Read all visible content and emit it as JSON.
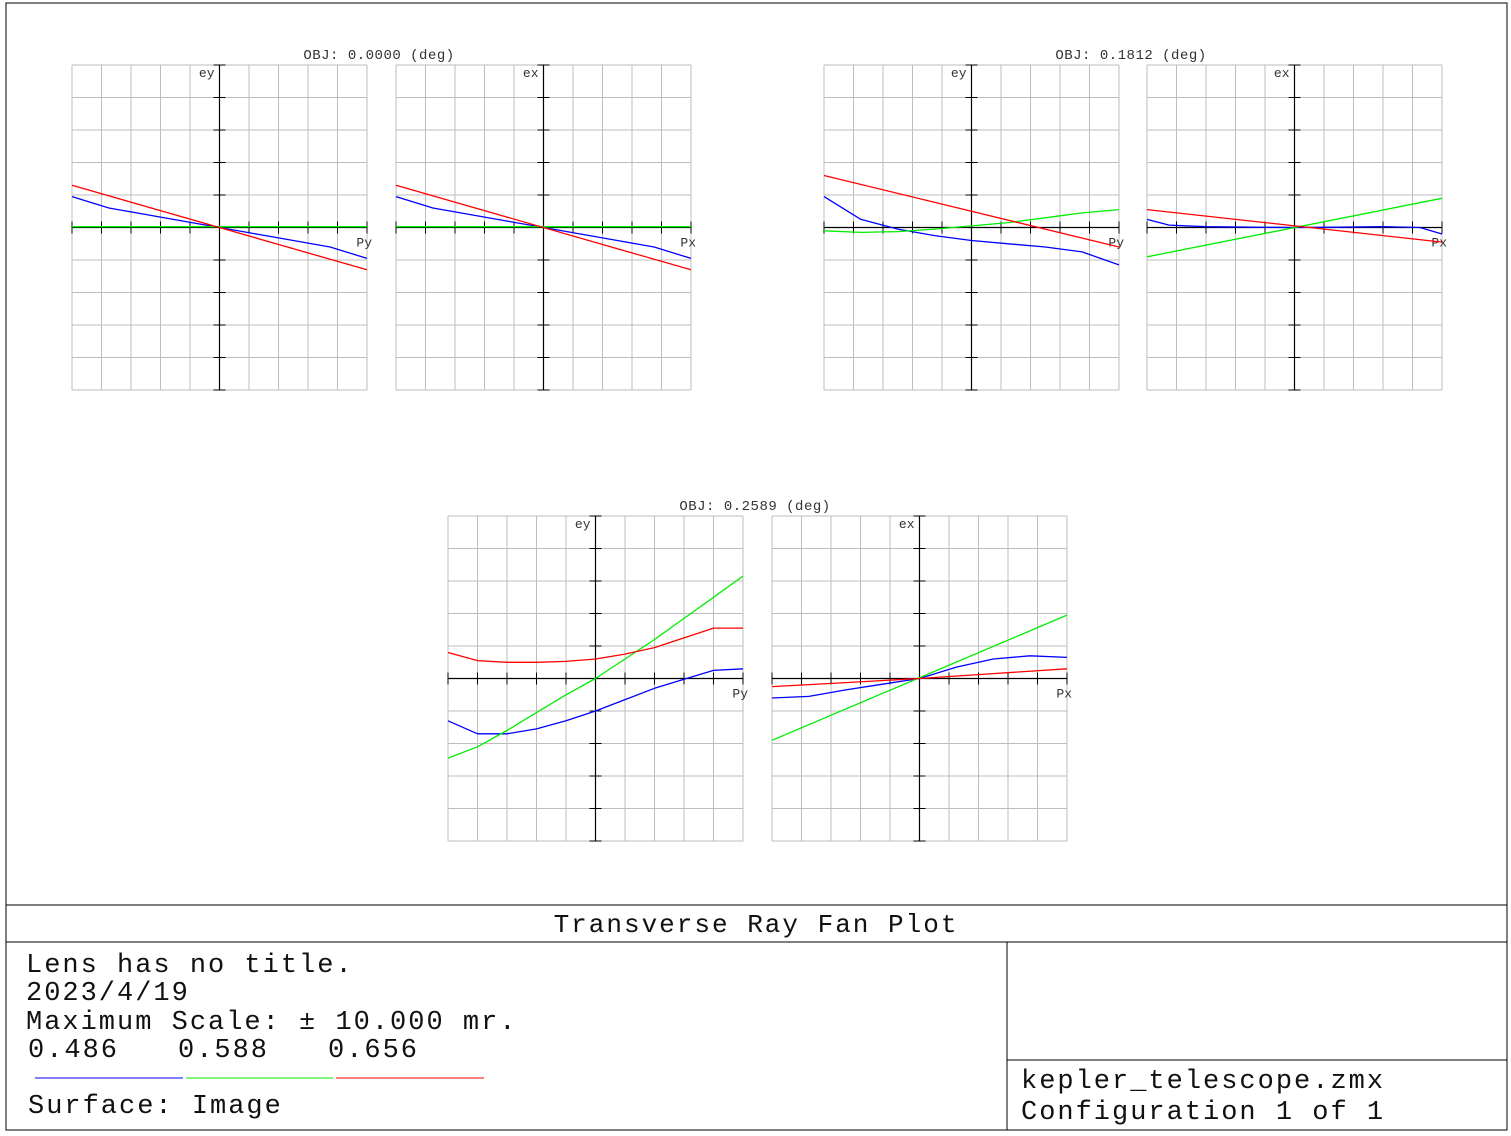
{
  "footer": {
    "plot_title": "Transverse Ray Fan Plot",
    "lens_title": "Lens has no title.",
    "date": "2023/4/19",
    "max_scale": "Maximum Scale: ± 10.000 mr.",
    "surface": "Surface: Image",
    "file_name": "kepler_telescope.zmx",
    "configuration": "Configuration 1 of 1"
  },
  "colors": {
    "wavelength_486": "#0000ff",
    "wavelength_588": "#00ee00",
    "wavelength_656": "#ff0000",
    "grid": "#bdbdbd",
    "axis": "#000000"
  },
  "chart_data": [
    {
      "type": "line",
      "title": "OBJ: 0.0000 (deg)",
      "panels": [
        {
          "ylabel": "ey",
          "xlabel": "Py",
          "xlim": [
            -1,
            1
          ],
          "ylim": [
            -10,
            10
          ],
          "series": [
            {
              "name": "0.486",
              "color": "#0000ff",
              "x": [
                -1,
                -0.75,
                -0.5,
                -0.25,
                0,
                0.25,
                0.5,
                0.75,
                1
              ],
              "y": [
                1.9,
                1.2,
                0.8,
                0.4,
                0,
                -0.4,
                -0.8,
                -1.2,
                -1.9
              ]
            },
            {
              "name": "0.588",
              "color": "#00ee00",
              "x": [
                -1,
                1
              ],
              "y": [
                0.05,
                0.05
              ]
            },
            {
              "name": "0.656",
              "color": "#ff0000",
              "x": [
                -1,
                1
              ],
              "y": [
                2.6,
                -2.6
              ]
            }
          ]
        },
        {
          "ylabel": "ex",
          "xlabel": "Px",
          "xlim": [
            -1,
            1
          ],
          "ylim": [
            -10,
            10
          ],
          "series": [
            {
              "name": "0.486",
              "color": "#0000ff",
              "x": [
                -1,
                -0.75,
                -0.5,
                -0.25,
                0,
                0.25,
                0.5,
                0.75,
                1
              ],
              "y": [
                1.9,
                1.2,
                0.8,
                0.4,
                0,
                -0.4,
                -0.8,
                -1.2,
                -1.9
              ]
            },
            {
              "name": "0.588",
              "color": "#00ee00",
              "x": [
                -1,
                1
              ],
              "y": [
                0.05,
                0.05
              ]
            },
            {
              "name": "0.656",
              "color": "#ff0000",
              "x": [
                -1,
                1
              ],
              "y": [
                2.6,
                -2.6
              ]
            }
          ]
        }
      ]
    },
    {
      "type": "line",
      "title": "OBJ: 0.1812 (deg)",
      "panels": [
        {
          "ylabel": "ey",
          "xlabel": "Py",
          "xlim": [
            -1,
            1
          ],
          "ylim": [
            -10,
            10
          ],
          "series": [
            {
              "name": "0.486",
              "color": "#0000ff",
              "x": [
                -1,
                -0.75,
                -0.5,
                -0.25,
                0,
                0.25,
                0.5,
                0.75,
                1
              ],
              "y": [
                1.9,
                0.5,
                -0.1,
                -0.5,
                -0.8,
                -1.0,
                -1.2,
                -1.5,
                -2.3
              ]
            },
            {
              "name": "0.588",
              "color": "#00ee00",
              "x": [
                -1,
                -0.75,
                -0.5,
                -0.25,
                0,
                0.25,
                0.5,
                0.75,
                1
              ],
              "y": [
                -0.2,
                -0.3,
                -0.25,
                -0.1,
                0.1,
                0.3,
                0.6,
                0.9,
                1.1
              ]
            },
            {
              "name": "0.656",
              "color": "#ff0000",
              "x": [
                -1,
                1
              ],
              "y": [
                3.2,
                -1.2
              ]
            }
          ]
        },
        {
          "ylabel": "ex",
          "xlabel": "Px",
          "xlim": [
            -1,
            1
          ],
          "ylim": [
            -10,
            10
          ],
          "series": [
            {
              "name": "0.486",
              "color": "#0000ff",
              "x": [
                -1,
                -0.85,
                -0.6,
                -0.3,
                0,
                0.3,
                0.6,
                0.85,
                1
              ],
              "y": [
                0.5,
                0.15,
                0.05,
                0.02,
                0,
                0.02,
                0.05,
                0.0,
                -0.4
              ]
            },
            {
              "name": "0.588",
              "color": "#00ee00",
              "x": [
                -1,
                1
              ],
              "y": [
                -1.8,
                1.8
              ]
            },
            {
              "name": "0.656",
              "color": "#ff0000",
              "x": [
                -1,
                1
              ],
              "y": [
                1.1,
                -0.9
              ]
            }
          ]
        }
      ]
    },
    {
      "type": "line",
      "title": "OBJ: 0.2589 (deg)",
      "panels": [
        {
          "ylabel": "ey",
          "xlabel": "Py",
          "xlim": [
            -1,
            1
          ],
          "ylim": [
            -10,
            10
          ],
          "series": [
            {
              "name": "0.486",
              "color": "#0000ff",
              "x": [
                -1,
                -0.8,
                -0.6,
                -0.4,
                -0.2,
                0,
                0.2,
                0.4,
                0.6,
                0.8,
                1
              ],
              "y": [
                -2.6,
                -3.4,
                -3.4,
                -3.1,
                -2.6,
                -2.0,
                -1.3,
                -0.6,
                -0.05,
                0.5,
                0.6
              ]
            },
            {
              "name": "0.588",
              "color": "#00ee00",
              "x": [
                -1,
                -0.8,
                -0.6,
                -0.4,
                -0.2,
                0,
                0.2,
                0.4,
                0.6,
                0.8,
                1
              ],
              "y": [
                -4.9,
                -4.2,
                -3.2,
                -2.1,
                -1.0,
                0.0,
                1.2,
                2.4,
                3.7,
                5.0,
                6.3
              ]
            },
            {
              "name": "0.656",
              "color": "#ff0000",
              "x": [
                -1,
                -0.8,
                -0.6,
                -0.4,
                -0.2,
                0,
                0.2,
                0.4,
                0.6,
                0.8,
                1
              ],
              "y": [
                1.6,
                1.1,
                1.0,
                1.0,
                1.05,
                1.2,
                1.5,
                1.9,
                2.5,
                3.1,
                3.1
              ]
            }
          ]
        },
        {
          "ylabel": "ex",
          "xlabel": "Px",
          "xlim": [
            -1,
            1
          ],
          "ylim": [
            -10,
            10
          ],
          "series": [
            {
              "name": "0.486",
              "color": "#0000ff",
              "x": [
                -1,
                -0.75,
                -0.5,
                -0.25,
                0,
                0.25,
                0.5,
                0.75,
                1
              ],
              "y": [
                -1.2,
                -1.1,
                -0.7,
                -0.35,
                0,
                0.7,
                1.2,
                1.4,
                1.3
              ]
            },
            {
              "name": "0.588",
              "color": "#00ee00",
              "x": [
                -1,
                1
              ],
              "y": [
                -3.8,
                3.9
              ]
            },
            {
              "name": "0.656",
              "color": "#ff0000",
              "x": [
                -1,
                -0.5,
                0,
                0.5,
                1
              ],
              "y": [
                -0.5,
                -0.25,
                0,
                0.3,
                0.6
              ]
            }
          ]
        }
      ]
    }
  ]
}
